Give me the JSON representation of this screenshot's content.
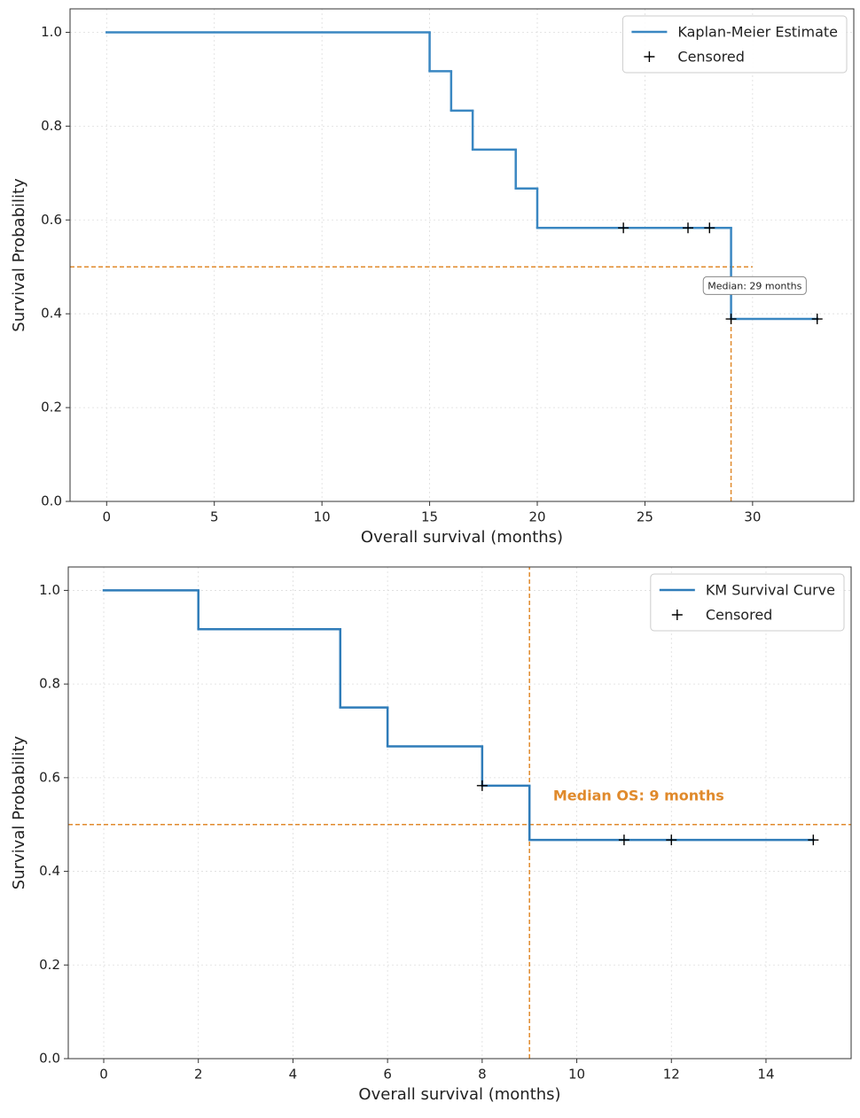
{
  "chart_data": [
    {
      "type": "line",
      "step": "post",
      "xlabel": "Overall survival (months)",
      "ylabel": "Survival Probability",
      "xlim": [
        -1.7,
        34.7
      ],
      "ylim": [
        0,
        1.05
      ],
      "xticks": [
        0,
        5,
        10,
        15,
        20,
        25,
        30
      ],
      "yticks": [
        {
          "value": 0,
          "label": "0.0"
        },
        0.2,
        0.4,
        0.6,
        0.8,
        {
          "value": 1,
          "label": "1.0"
        }
      ],
      "grid": true,
      "legend": "upper right",
      "series": [
        {
          "name": "Kaplan-Meier Estimate",
          "color": "#3a87c2",
          "x": [
            0,
            15,
            16,
            17,
            19,
            20,
            29,
            33
          ],
          "values": [
            1.0,
            0.917,
            0.833,
            0.75,
            0.667,
            0.583,
            0.389,
            0.389
          ]
        },
        {
          "name": "Censored",
          "color": "#000000",
          "marker": "+",
          "x": [
            24,
            27,
            28,
            29,
            33
          ],
          "values": [
            0.583,
            0.583,
            0.583,
            0.389,
            0.389
          ]
        }
      ],
      "median": {
        "x": 29,
        "y": 0.5,
        "hline_xmax": 30,
        "vline_ymax": 0.5,
        "color": "#e08a2c",
        "label": "Median: 29 months",
        "label_style": "box"
      }
    },
    {
      "type": "line",
      "step": "post",
      "xlabel": "Overall survival (months)",
      "ylabel": "Survival Probability",
      "xlim": [
        -0.75,
        15.8
      ],
      "ylim": [
        0,
        1.05
      ],
      "xticks": [
        0,
        2,
        4,
        6,
        8,
        10,
        12,
        14
      ],
      "yticks": [
        {
          "value": 0,
          "label": "0.0"
        },
        0.2,
        0.4,
        0.6,
        0.8,
        {
          "value": 1,
          "label": "1.0"
        }
      ],
      "grid": true,
      "legend": "upper right",
      "series": [
        {
          "name": "KM Survival Curve",
          "color": "#2f7cb9",
          "x": [
            0,
            2,
            5,
            6,
            8,
            9,
            15
          ],
          "values": [
            1.0,
            0.917,
            0.75,
            0.667,
            0.583,
            0.467,
            0.467
          ]
        },
        {
          "name": "Censored",
          "color": "#000000",
          "marker": "+",
          "x": [
            8,
            11,
            12,
            15
          ],
          "values": [
            0.583,
            0.467,
            0.467,
            0.467
          ]
        }
      ],
      "median": {
        "x": 9,
        "y": 0.5,
        "color": "#e08a2c",
        "label": "Median OS: 9 months",
        "label_style": "bold"
      }
    }
  ]
}
